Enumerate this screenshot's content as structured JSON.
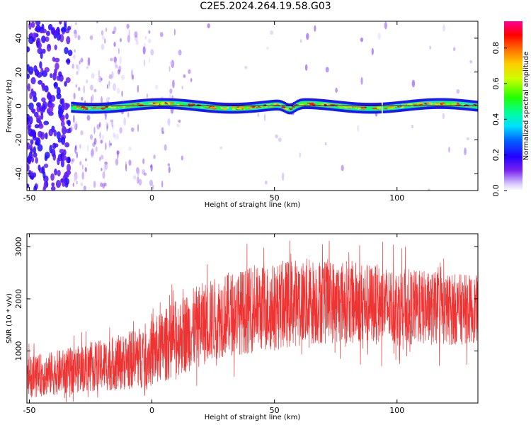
{
  "title": "C2E5.2024.264.19.58.G03",
  "chart_data": [
    {
      "type": "heatmap",
      "xlabel": "Height of straight line (km)",
      "ylabel": "Frequency (Hz)",
      "xlim": [
        -51,
        133
      ],
      "ylim": [
        -50,
        50
      ],
      "x_ticks": [
        -50,
        0,
        50,
        100
      ],
      "y_ticks": [
        -40,
        -20,
        0,
        20,
        40
      ],
      "colorbar": {
        "label": "Normalized spectral amplitude",
        "range": [
          0,
          0.95
        ],
        "ticks": [
          0.0,
          0.2,
          0.4,
          0.6,
          0.8
        ]
      },
      "features": {
        "band_center_hz": 0,
        "band_start_km": -33,
        "band_dip_km": 56,
        "band_dip_hz": -3,
        "noise_region_km": [
          -51,
          -33
        ],
        "gap_km": 93.5
      }
    },
    {
      "type": "line",
      "xlabel": "Height of straight line (km)",
      "ylabel": "SNR (10 * v/v)",
      "xlim": [
        -51,
        133
      ],
      "ylim": [
        0,
        3250
      ],
      "x_ticks": [
        -50,
        0,
        50,
        100
      ],
      "y_ticks": [
        1000,
        2000,
        3000
      ],
      "line_color": "#ee3333",
      "envelope_km": [
        -50,
        -30,
        -10,
        0,
        10,
        20,
        30,
        50,
        60,
        80,
        100,
        120,
        133
      ],
      "envelope_mean": [
        500,
        650,
        800,
        950,
        1250,
        1500,
        1700,
        1850,
        1950,
        1950,
        1850,
        1800,
        1800
      ],
      "envelope_amplitude": [
        400,
        450,
        550,
        650,
        750,
        800,
        800,
        850,
        850,
        800,
        750,
        700,
        650
      ]
    }
  ]
}
